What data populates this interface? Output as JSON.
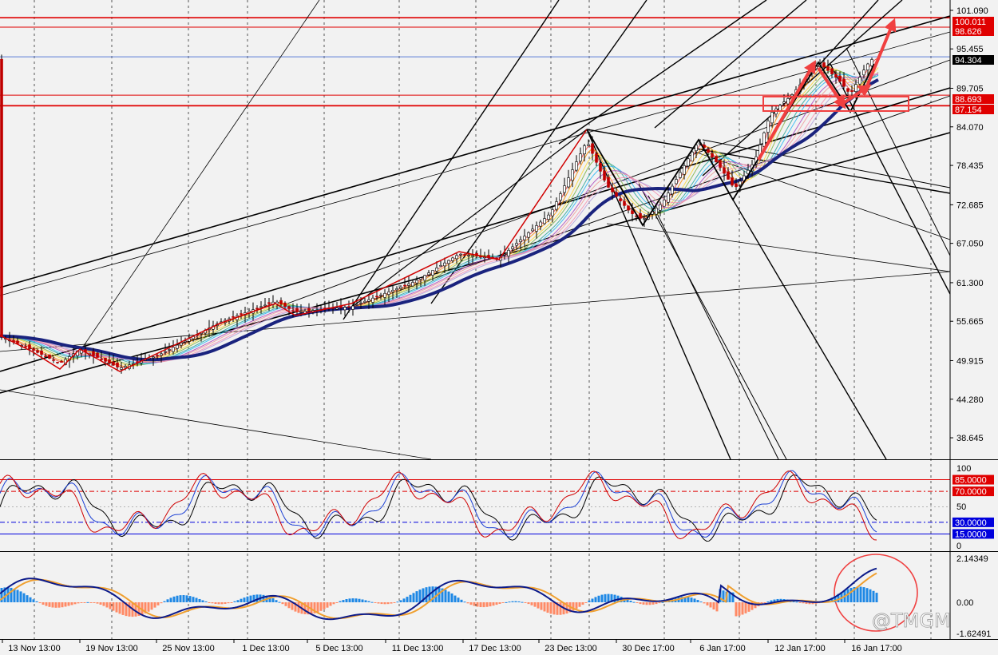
{
  "chart_data": [
    {
      "type": "candlestick",
      "panel": "price",
      "y_ticks": [
        "101.090",
        "95.455",
        "89.705",
        "84.070",
        "78.435",
        "72.685",
        "67.050",
        "61.300",
        "55.665",
        "49.915",
        "44.280",
        "38.645"
      ],
      "y_tick_values": [
        101.09,
        95.455,
        89.705,
        84.07,
        78.435,
        72.685,
        67.05,
        61.3,
        55.665,
        49.915,
        44.28,
        38.645
      ],
      "ylim": [
        35.5,
        102.6
      ],
      "price_tags": [
        {
          "label": "100.011",
          "value": 100.011,
          "color": "#e00000"
        },
        {
          "label": "98.626",
          "value": 98.626,
          "color": "#e00000"
        },
        {
          "label": "94.304",
          "value": 94.304,
          "color": "#000000"
        },
        {
          "label": "88.693",
          "value": 88.693,
          "color": "#e00000"
        },
        {
          "label": "87.154",
          "value": 87.154,
          "color": "#e00000"
        }
      ],
      "horizontal_levels": [
        100.011,
        98.626,
        94.304,
        88.693,
        87.154
      ],
      "price_path": [
        {
          "t": 0,
          "p": 53.5
        },
        {
          "t": 40,
          "p": 51.5
        },
        {
          "t": 75,
          "p": 49.5
        },
        {
          "t": 100,
          "p": 51.6
        },
        {
          "t": 150,
          "p": 48.8
        },
        {
          "t": 200,
          "p": 50.8
        },
        {
          "t": 275,
          "p": 55.5
        },
        {
          "t": 345,
          "p": 58.6
        },
        {
          "t": 370,
          "p": 57.0
        },
        {
          "t": 440,
          "p": 57.8
        },
        {
          "t": 520,
          "p": 61.5
        },
        {
          "t": 575,
          "p": 65.5
        },
        {
          "t": 625,
          "p": 64.8
        },
        {
          "t": 690,
          "p": 71.5
        },
        {
          "t": 735,
          "p": 82.0
        },
        {
          "t": 760,
          "p": 75.5
        },
        {
          "t": 790,
          "p": 71.5
        },
        {
          "t": 805,
          "p": 70.5
        },
        {
          "t": 830,
          "p": 73.0
        },
        {
          "t": 875,
          "p": 82.0
        },
        {
          "t": 900,
          "p": 78.5
        },
        {
          "t": 920,
          "p": 75.0
        },
        {
          "t": 945,
          "p": 79.0
        },
        {
          "t": 965,
          "p": 86.0
        },
        {
          "t": 990,
          "p": 88.5
        },
        {
          "t": 1025,
          "p": 93.5
        },
        {
          "t": 1050,
          "p": 91.0
        },
        {
          "t": 1065,
          "p": 88.8
        },
        {
          "t": 1085,
          "p": 93.0
        },
        {
          "t": 1095,
          "p": 94.3
        }
      ]
    },
    {
      "type": "line",
      "panel": "stochastic",
      "y_ticks": [
        "100",
        "50",
        "0"
      ],
      "levels": [
        {
          "label": "85.0000",
          "value": 85,
          "color": "#e00000"
        },
        {
          "label": "70.0000",
          "value": 70,
          "color": "#e00000"
        },
        {
          "label": "30.0000",
          "value": 30,
          "color": "#0000dd"
        },
        {
          "label": "15.0000",
          "value": 15,
          "color": "#0000dd"
        }
      ],
      "ylim": [
        0,
        100
      ]
    },
    {
      "type": "bar",
      "panel": "macd",
      "y_ticks": [
        "2.14349",
        "0.00",
        "-1.62491"
      ],
      "ylim": [
        -1.62491,
        2.14349
      ]
    }
  ],
  "x_labels": [
    "13 Nov 13:00",
    "19 Nov 13:00",
    "25 Nov 13:00",
    "1 Dec 13:00",
    "5 Dec 13:00",
    "11 Dec 13:00",
    "17 Dec 13:00",
    "23 Dec 13:00",
    "30 Dec 17:00",
    "6 Jan 17:00",
    "12 Jan 17:00",
    "16 Jan 17:00"
  ],
  "watermark": "@TMGM",
  "colors": {
    "bg": "#f2f2f2",
    "red": "#e00000",
    "blue": "#0000dd",
    "navy": "#1a237e",
    "histo_pos": "#1e88e5",
    "histo_neg": "#ff8a65",
    "annot": "#f04040"
  }
}
